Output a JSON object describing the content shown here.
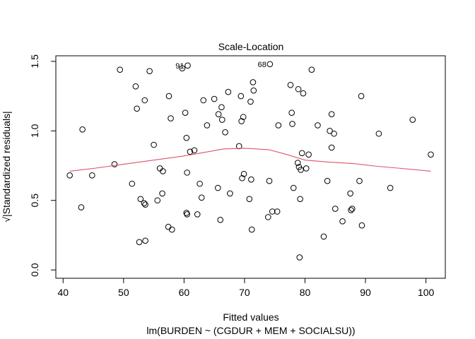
{
  "chart_data": {
    "type": "scatter",
    "title": "Scale-Location",
    "xlabel": "Fitted values",
    "subtitle": "lm(BURDEN ~ (CGDUR + MEM + SOCIALSU))",
    "ylabel": "√|Standardized residuals|",
    "xlim": [
      38.8,
      103.2
    ],
    "ylim": [
      -0.06,
      1.54
    ],
    "x_ticks": [
      40,
      50,
      60,
      70,
      80,
      90,
      100
    ],
    "y_ticks": [
      0.0,
      0.5,
      1.0,
      1.5
    ],
    "x_tick_labels": [
      "40",
      "50",
      "60",
      "70",
      "80",
      "90",
      "100"
    ],
    "y_tick_labels": [
      "0.0",
      "0.5",
      "1.0",
      "1.5"
    ],
    "grid": false,
    "legend": "none",
    "point_color": "#000000",
    "smooth_color": "#DF536B",
    "points": [
      {
        "x": 41.1,
        "y": 0.68
      },
      {
        "x": 43.0,
        "y": 0.45
      },
      {
        "x": 43.2,
        "y": 1.01
      },
      {
        "x": 44.8,
        "y": 0.68
      },
      {
        "x": 48.5,
        "y": 0.76
      },
      {
        "x": 49.4,
        "y": 1.44
      },
      {
        "x": 51.4,
        "y": 0.62
      },
      {
        "x": 52.0,
        "y": 1.32
      },
      {
        "x": 52.2,
        "y": 1.16
      },
      {
        "x": 52.6,
        "y": 0.2
      },
      {
        "x": 52.8,
        "y": 0.51
      },
      {
        "x": 53.4,
        "y": 0.48
      },
      {
        "x": 53.5,
        "y": 1.22
      },
      {
        "x": 53.6,
        "y": 0.21
      },
      {
        "x": 53.6,
        "y": 0.47
      },
      {
        "x": 54.3,
        "y": 1.43
      },
      {
        "x": 55.0,
        "y": 0.9
      },
      {
        "x": 55.6,
        "y": 0.5
      },
      {
        "x": 56.0,
        "y": 0.73
      },
      {
        "x": 56.4,
        "y": 0.55
      },
      {
        "x": 56.5,
        "y": 0.71
      },
      {
        "x": 57.4,
        "y": 0.31
      },
      {
        "x": 57.5,
        "y": 1.25
      },
      {
        "x": 57.8,
        "y": 1.09
      },
      {
        "x": 58.0,
        "y": 0.29
      },
      {
        "x": 59.7,
        "y": 1.45
      },
      {
        "x": 60.2,
        "y": 1.13
      },
      {
        "x": 60.4,
        "y": 0.95
      },
      {
        "x": 60.4,
        "y": 0.41
      },
      {
        "x": 60.5,
        "y": 0.7
      },
      {
        "x": 60.5,
        "y": 0.4
      },
      {
        "x": 60.6,
        "y": 1.47
      },
      {
        "x": 61.0,
        "y": 0.85
      },
      {
        "x": 61.7,
        "y": 0.86
      },
      {
        "x": 62.2,
        "y": 0.4
      },
      {
        "x": 62.6,
        "y": 0.62
      },
      {
        "x": 62.9,
        "y": 0.52
      },
      {
        "x": 63.2,
        "y": 1.22
      },
      {
        "x": 63.8,
        "y": 1.04
      },
      {
        "x": 65.0,
        "y": 1.23
      },
      {
        "x": 65.6,
        "y": 0.59
      },
      {
        "x": 65.7,
        "y": 1.12
      },
      {
        "x": 66.0,
        "y": 0.36
      },
      {
        "x": 66.2,
        "y": 1.17
      },
      {
        "x": 66.3,
        "y": 1.08
      },
      {
        "x": 66.8,
        "y": 0.99
      },
      {
        "x": 67.3,
        "y": 1.28
      },
      {
        "x": 67.6,
        "y": 0.55
      },
      {
        "x": 69.1,
        "y": 0.89
      },
      {
        "x": 69.4,
        "y": 1.25
      },
      {
        "x": 69.5,
        "y": 1.07
      },
      {
        "x": 69.6,
        "y": 0.66
      },
      {
        "x": 69.8,
        "y": 1.1
      },
      {
        "x": 69.9,
        "y": 0.69
      },
      {
        "x": 70.8,
        "y": 0.51
      },
      {
        "x": 71.0,
        "y": 1.21
      },
      {
        "x": 71.1,
        "y": 0.65
      },
      {
        "x": 71.2,
        "y": 0.29
      },
      {
        "x": 71.4,
        "y": 1.35
      },
      {
        "x": 71.5,
        "y": 1.29
      },
      {
        "x": 73.9,
        "y": 0.38
      },
      {
        "x": 74.1,
        "y": 0.64
      },
      {
        "x": 74.2,
        "y": 1.48
      },
      {
        "x": 74.6,
        "y": 0.42
      },
      {
        "x": 75.4,
        "y": 0.42
      },
      {
        "x": 75.6,
        "y": 1.04
      },
      {
        "x": 77.6,
        "y": 1.33
      },
      {
        "x": 77.8,
        "y": 1.13
      },
      {
        "x": 77.9,
        "y": 1.05
      },
      {
        "x": 78.1,
        "y": 0.59
      },
      {
        "x": 78.8,
        "y": 0.77
      },
      {
        "x": 78.9,
        "y": 1.3
      },
      {
        "x": 79.0,
        "y": 0.74
      },
      {
        "x": 79.1,
        "y": 0.09
      },
      {
        "x": 79.2,
        "y": 0.51
      },
      {
        "x": 79.3,
        "y": 0.72
      },
      {
        "x": 79.5,
        "y": 0.84
      },
      {
        "x": 79.7,
        "y": 1.27
      },
      {
        "x": 80.2,
        "y": 0.73
      },
      {
        "x": 80.6,
        "y": 0.83
      },
      {
        "x": 81.1,
        "y": 1.44
      },
      {
        "x": 82.1,
        "y": 1.04
      },
      {
        "x": 83.1,
        "y": 0.24
      },
      {
        "x": 83.7,
        "y": 0.64
      },
      {
        "x": 84.1,
        "y": 1.0
      },
      {
        "x": 84.4,
        "y": 0.88
      },
      {
        "x": 84.4,
        "y": 1.12
      },
      {
        "x": 84.8,
        "y": 0.98
      },
      {
        "x": 85.0,
        "y": 0.44
      },
      {
        "x": 86.2,
        "y": 0.35
      },
      {
        "x": 87.5,
        "y": 0.55
      },
      {
        "x": 87.6,
        "y": 0.43
      },
      {
        "x": 87.8,
        "y": 0.44
      },
      {
        "x": 89.0,
        "y": 0.64
      },
      {
        "x": 89.3,
        "y": 1.25
      },
      {
        "x": 89.4,
        "y": 0.32
      },
      {
        "x": 92.2,
        "y": 0.98
      },
      {
        "x": 94.1,
        "y": 0.59
      },
      {
        "x": 97.8,
        "y": 1.08
      },
      {
        "x": 100.8,
        "y": 0.83
      }
    ],
    "smooth_line": [
      {
        "x": 41.1,
        "y": 0.71
      },
      {
        "x": 45.0,
        "y": 0.73
      },
      {
        "x": 50.0,
        "y": 0.76
      },
      {
        "x": 55.0,
        "y": 0.79
      },
      {
        "x": 60.0,
        "y": 0.82
      },
      {
        "x": 64.0,
        "y": 0.85
      },
      {
        "x": 66.5,
        "y": 0.87
      },
      {
        "x": 70.0,
        "y": 0.875
      },
      {
        "x": 74.0,
        "y": 0.865
      },
      {
        "x": 77.0,
        "y": 0.83
      },
      {
        "x": 80.0,
        "y": 0.79
      },
      {
        "x": 84.0,
        "y": 0.775
      },
      {
        "x": 88.0,
        "y": 0.765
      },
      {
        "x": 92.0,
        "y": 0.745
      },
      {
        "x": 96.0,
        "y": 0.73
      },
      {
        "x": 100.8,
        "y": 0.71
      }
    ],
    "annotations": [
      {
        "label": "91",
        "x": 60.6,
        "y": 1.47
      },
      {
        "label": "68",
        "x": 74.2,
        "y": 1.48
      }
    ]
  }
}
